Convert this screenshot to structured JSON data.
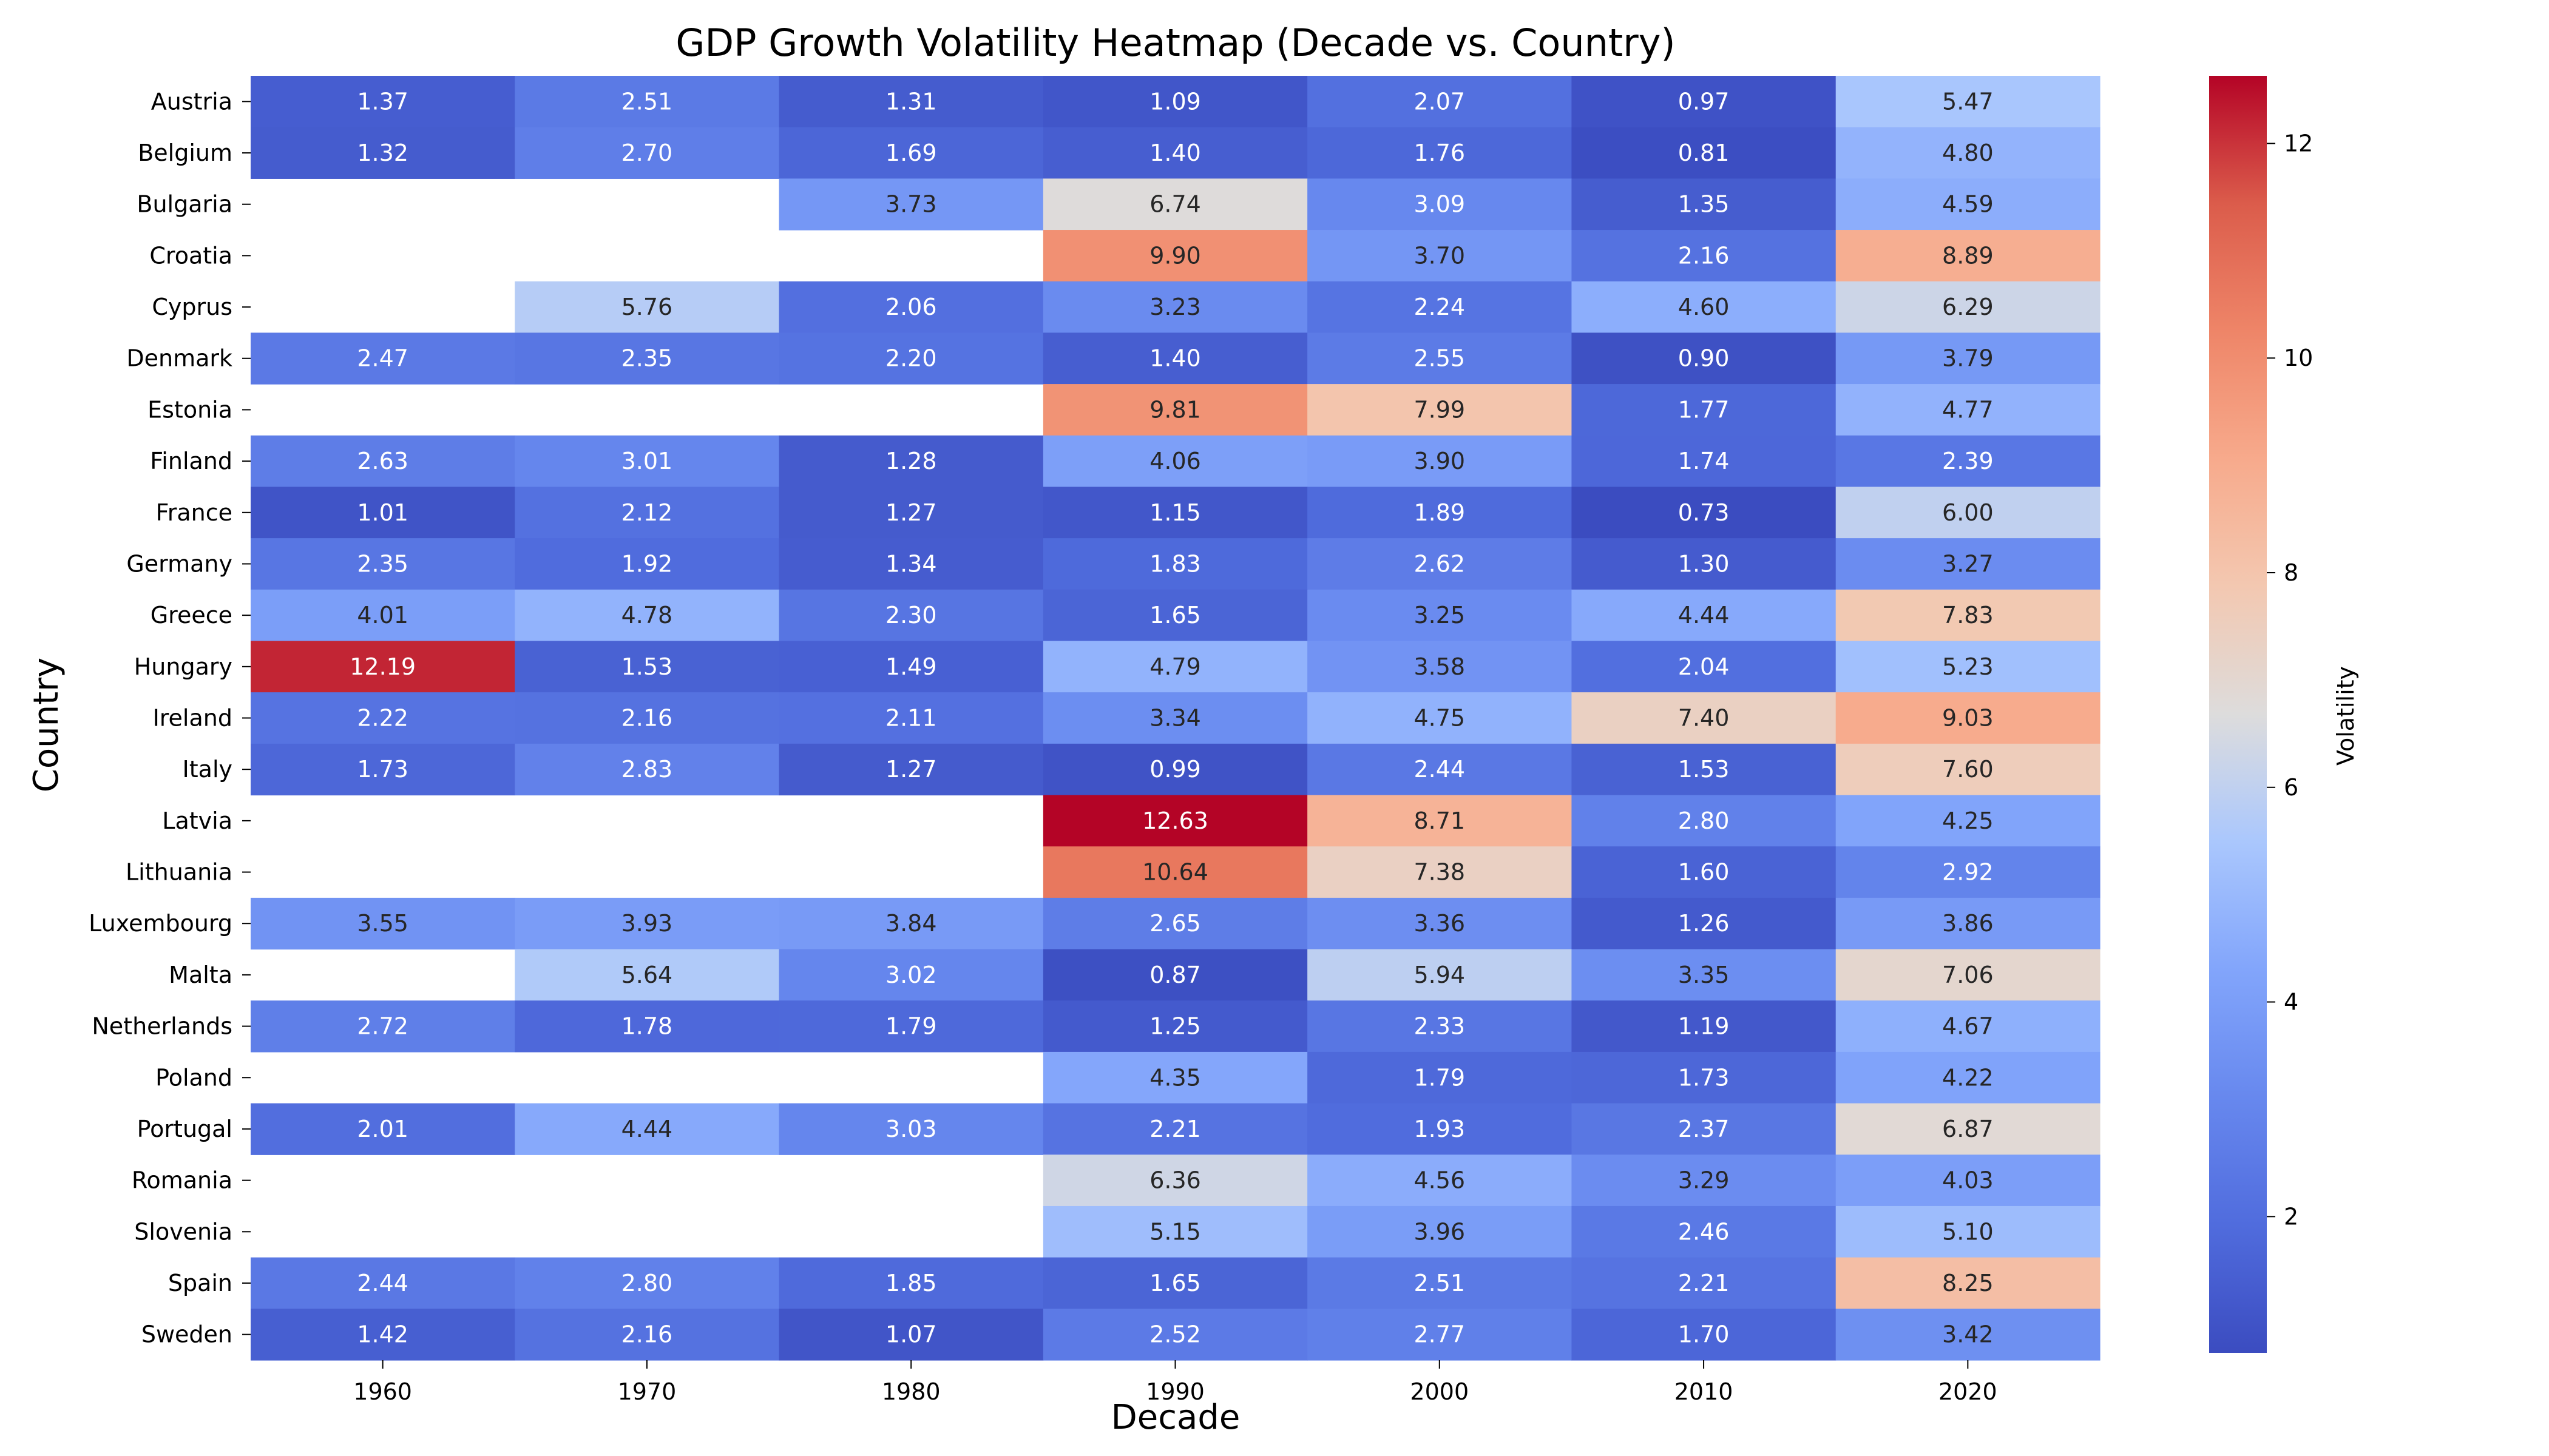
{
  "chart_data": {
    "type": "heatmap",
    "title": "GDP Growth Volatility Heatmap (Decade vs. Country)",
    "xlabel": "Decade",
    "ylabel": "Country",
    "colorbar_label": "Volatility",
    "colormap": "coolwarm",
    "vmin": 0.73,
    "vmax": 12.63,
    "colorbar_ticks": [
      "2",
      "4",
      "6",
      "8",
      "10",
      "12"
    ],
    "colorbar_tick_values": [
      2,
      4,
      6,
      8,
      10,
      12
    ],
    "columns": [
      "1960",
      "1970",
      "1980",
      "1990",
      "2000",
      "2010",
      "2020"
    ],
    "rows": [
      "Austria",
      "Belgium",
      "Bulgaria",
      "Croatia",
      "Cyprus",
      "Denmark",
      "Estonia",
      "Finland",
      "France",
      "Germany",
      "Greece",
      "Hungary",
      "Ireland",
      "Italy",
      "Latvia",
      "Lithuania",
      "Luxembourg",
      "Malta",
      "Netherlands",
      "Poland",
      "Portugal",
      "Romania",
      "Slovenia",
      "Spain",
      "Sweden"
    ],
    "values": [
      [
        1.37,
        2.51,
        1.31,
        1.09,
        2.07,
        0.97,
        5.47
      ],
      [
        1.32,
        2.7,
        1.69,
        1.4,
        1.76,
        0.81,
        4.8
      ],
      [
        null,
        null,
        3.73,
        6.74,
        3.09,
        1.35,
        4.59
      ],
      [
        null,
        null,
        null,
        9.9,
        3.7,
        2.16,
        8.89
      ],
      [
        null,
        5.76,
        2.06,
        3.23,
        2.24,
        4.6,
        6.29
      ],
      [
        2.47,
        2.35,
        2.2,
        1.4,
        2.55,
        0.9,
        3.79
      ],
      [
        null,
        null,
        null,
        9.81,
        7.99,
        1.77,
        4.77
      ],
      [
        2.63,
        3.01,
        1.28,
        4.06,
        3.9,
        1.74,
        2.39
      ],
      [
        1.01,
        2.12,
        1.27,
        1.15,
        1.89,
        0.73,
        6.0
      ],
      [
        2.35,
        1.92,
        1.34,
        1.83,
        2.62,
        1.3,
        3.27
      ],
      [
        4.01,
        4.78,
        2.3,
        1.65,
        3.25,
        4.44,
        7.83
      ],
      [
        12.19,
        1.53,
        1.49,
        4.79,
        3.58,
        2.04,
        5.23
      ],
      [
        2.22,
        2.16,
        2.11,
        3.34,
        4.75,
        7.4,
        9.03
      ],
      [
        1.73,
        2.83,
        1.27,
        0.99,
        2.44,
        1.53,
        7.6
      ],
      [
        null,
        null,
        null,
        12.63,
        8.71,
        2.8,
        4.25
      ],
      [
        null,
        null,
        null,
        10.64,
        7.38,
        1.6,
        2.92
      ],
      [
        3.55,
        3.93,
        3.84,
        2.65,
        3.36,
        1.26,
        3.86
      ],
      [
        null,
        5.64,
        3.02,
        0.87,
        5.94,
        3.35,
        7.06
      ],
      [
        2.72,
        1.78,
        1.79,
        1.25,
        2.33,
        1.19,
        4.67
      ],
      [
        null,
        null,
        null,
        4.35,
        1.79,
        1.73,
        4.22
      ],
      [
        2.01,
        4.44,
        3.03,
        2.21,
        1.93,
        2.37,
        6.87
      ],
      [
        null,
        null,
        null,
        6.36,
        4.56,
        3.29,
        4.03
      ],
      [
        null,
        null,
        null,
        5.15,
        3.96,
        2.46,
        5.1
      ],
      [
        2.44,
        2.8,
        1.85,
        1.65,
        2.51,
        2.21,
        8.25
      ],
      [
        1.42,
        2.16,
        1.07,
        2.52,
        2.77,
        1.7,
        3.42
      ]
    ],
    "value_format": "2 decimals",
    "grid": false,
    "legend": "colorbar-right"
  }
}
